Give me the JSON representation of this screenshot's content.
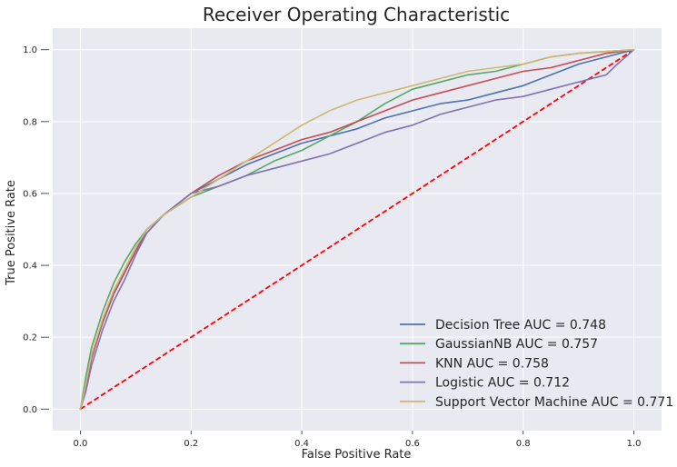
{
  "chart_data": {
    "type": "line",
    "title": "Receiver Operating Characteristic",
    "xlabel": "False Positive Rate",
    "ylabel": "True Positive Rate",
    "xlim": [
      -0.05,
      1.05
    ],
    "ylim": [
      -0.06,
      1.06
    ],
    "x_ticks": [
      "0.0",
      "0.2",
      "0.4",
      "0.6",
      "0.8",
      "1.0"
    ],
    "y_ticks": [
      "0.0",
      "0.2",
      "0.4",
      "0.6",
      "0.8",
      "1.0"
    ],
    "grid": true,
    "legend_position": "lower-right",
    "background": "#e9e9f1",
    "reference_line": {
      "x": [
        0,
        1
      ],
      "y": [
        0,
        1
      ],
      "color": "#ff0000",
      "style": "dashed"
    },
    "series": [
      {
        "name": "Decision Tree AUC = 0.748",
        "color": "#4c72b0",
        "x": [
          0,
          0.01,
          0.02,
          0.04,
          0.06,
          0.08,
          0.1,
          0.12,
          0.15,
          0.2,
          0.25,
          0.3,
          0.35,
          0.4,
          0.45,
          0.5,
          0.55,
          0.6,
          0.65,
          0.7,
          0.75,
          0.8,
          0.85,
          0.9,
          0.95,
          1.0
        ],
        "y": [
          0,
          0.07,
          0.14,
          0.24,
          0.32,
          0.38,
          0.44,
          0.5,
          0.54,
          0.6,
          0.64,
          0.68,
          0.71,
          0.74,
          0.76,
          0.78,
          0.81,
          0.83,
          0.85,
          0.86,
          0.88,
          0.9,
          0.93,
          0.96,
          0.98,
          1.0
        ]
      },
      {
        "name": "GaussianNB AUC = 0.757",
        "color": "#55a868",
        "x": [
          0,
          0.01,
          0.02,
          0.04,
          0.06,
          0.08,
          0.1,
          0.12,
          0.15,
          0.2,
          0.25,
          0.3,
          0.35,
          0.4,
          0.45,
          0.5,
          0.55,
          0.6,
          0.65,
          0.7,
          0.75,
          0.8,
          0.85,
          0.9,
          0.95,
          1.0
        ],
        "y": [
          0,
          0.09,
          0.17,
          0.27,
          0.35,
          0.41,
          0.46,
          0.5,
          0.54,
          0.59,
          0.62,
          0.65,
          0.69,
          0.72,
          0.76,
          0.8,
          0.85,
          0.89,
          0.91,
          0.93,
          0.94,
          0.96,
          0.98,
          0.99,
          0.995,
          1.0
        ]
      },
      {
        "name": "KNN AUC = 0.758",
        "color": "#c44e52",
        "x": [
          0,
          0.01,
          0.02,
          0.04,
          0.06,
          0.08,
          0.1,
          0.12,
          0.15,
          0.2,
          0.25,
          0.3,
          0.35,
          0.4,
          0.45,
          0.5,
          0.55,
          0.6,
          0.65,
          0.7,
          0.75,
          0.8,
          0.85,
          0.9,
          0.95,
          1.0
        ],
        "y": [
          0,
          0.06,
          0.14,
          0.24,
          0.32,
          0.38,
          0.44,
          0.49,
          0.54,
          0.6,
          0.65,
          0.69,
          0.72,
          0.75,
          0.77,
          0.8,
          0.83,
          0.86,
          0.88,
          0.9,
          0.92,
          0.94,
          0.95,
          0.97,
          0.99,
          1.0
        ]
      },
      {
        "name": "Logistic AUC = 0.712",
        "color": "#8172b2",
        "x": [
          0,
          0.01,
          0.02,
          0.04,
          0.06,
          0.08,
          0.1,
          0.12,
          0.15,
          0.2,
          0.25,
          0.3,
          0.35,
          0.4,
          0.45,
          0.5,
          0.55,
          0.6,
          0.65,
          0.7,
          0.75,
          0.8,
          0.85,
          0.9,
          0.95,
          0.97,
          1.0
        ],
        "y": [
          0,
          0.05,
          0.12,
          0.22,
          0.3,
          0.36,
          0.43,
          0.49,
          0.54,
          0.6,
          0.62,
          0.65,
          0.67,
          0.69,
          0.71,
          0.74,
          0.77,
          0.79,
          0.82,
          0.84,
          0.86,
          0.87,
          0.89,
          0.91,
          0.93,
          0.96,
          1.0
        ]
      },
      {
        "name": "Support Vector Machine AUC = 0.771",
        "color": "#ccb974",
        "x": [
          0,
          0.01,
          0.02,
          0.04,
          0.06,
          0.08,
          0.1,
          0.12,
          0.15,
          0.2,
          0.25,
          0.3,
          0.35,
          0.4,
          0.45,
          0.5,
          0.55,
          0.6,
          0.65,
          0.7,
          0.75,
          0.8,
          0.85,
          0.9,
          0.95,
          1.0
        ],
        "y": [
          0,
          0.07,
          0.15,
          0.25,
          0.33,
          0.39,
          0.45,
          0.5,
          0.54,
          0.59,
          0.64,
          0.69,
          0.74,
          0.79,
          0.83,
          0.86,
          0.88,
          0.9,
          0.92,
          0.94,
          0.95,
          0.96,
          0.98,
          0.99,
          0.995,
          1.0
        ]
      }
    ]
  }
}
